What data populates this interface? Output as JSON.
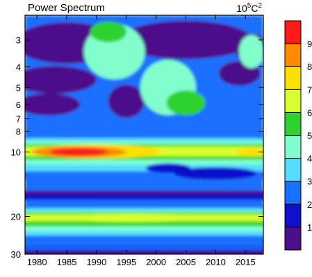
{
  "chart_data": {
    "type": "heatmap",
    "title": "Power Spectrum",
    "units_base": "10",
    "units_exp": "5",
    "units_tail": "C",
    "units_tail_exp": "2",
    "xlabel": "",
    "ylabel": "",
    "x_range": [
      1978,
      2018
    ],
    "y_range": [
      2.3,
      30
    ],
    "y_scale": "log",
    "x_ticks": [
      "1980",
      "1985",
      "1990",
      "1995",
      "2000",
      "2005",
      "2010",
      "2015"
    ],
    "x_tick_values": [
      1980,
      1985,
      1990,
      1995,
      2000,
      2005,
      2010,
      2015
    ],
    "y_ticks": [
      "3",
      "4",
      "5",
      "6",
      "7",
      "8",
      "10",
      "20",
      "30"
    ],
    "y_tick_values": [
      3,
      4,
      5,
      6,
      7,
      8,
      10,
      20,
      30
    ],
    "colorbar": {
      "levels": [
        "1",
        "2",
        "3",
        "4",
        "5",
        "6",
        "7",
        "8",
        "9"
      ],
      "colors": [
        "#4b0f8a",
        "#1010cc",
        "#1a6fff",
        "#55dcff",
        "#80ffcc",
        "#2ed22e",
        "#d8ff2f",
        "#ffe000",
        "#ff8a00",
        "#ff1a1a"
      ]
    },
    "features": [
      {
        "band_period": 10,
        "peak_year": 1987,
        "peak_level": 9
      },
      {
        "band_period": 20,
        "peak_year": 1995,
        "peak_level": 6
      },
      {
        "band_period": 6,
        "peak_year": 2005,
        "peak_level": 5
      },
      {
        "band_period": 3,
        "peak_year": 1992,
        "peak_level": 5
      }
    ]
  }
}
